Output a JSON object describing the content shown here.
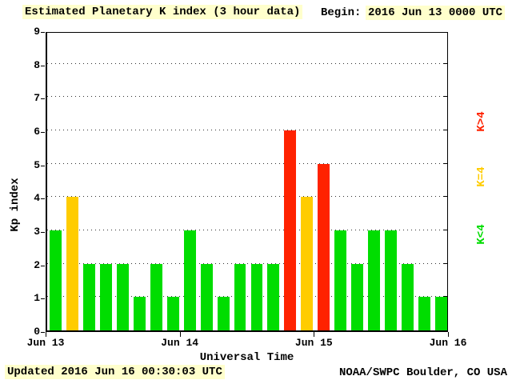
{
  "header": {
    "title": "Estimated Planetary K index (3 hour data)",
    "begin_label": "Begin:",
    "begin_value": "2016 Jun 13 0000 UTC"
  },
  "footer": {
    "updated": "Updated 2016 Jun 16 00:30:03 UTC",
    "source": "NOAA/SWPC Boulder, CO USA"
  },
  "axes": {
    "ylabel": "Kp index",
    "xlabel": "Universal Time"
  },
  "legend": [
    {
      "label": "K>4",
      "color_key": "red"
    },
    {
      "label": "K=4",
      "color_key": "yellow"
    },
    {
      "label": "K<4",
      "color_key": "green"
    }
  ],
  "colors": {
    "red": "#FF2200",
    "yellow": "#FFCC00",
    "green": "#00DD00",
    "highlight": "#FFFFCC",
    "axis": "#000000"
  },
  "chart_data": {
    "type": "bar",
    "title": "Estimated Planetary K index (3 hour data)",
    "xlabel": "Universal Time",
    "ylabel": "Kp index",
    "ylim": [
      0,
      9
    ],
    "yticks": [
      0,
      1,
      2,
      3,
      4,
      5,
      6,
      7,
      8,
      9
    ],
    "x_tick_labels": [
      "Jun 13",
      "Jun 14",
      "Jun 15",
      "Jun 16"
    ],
    "interval_hours": 3,
    "grid": "horizontal-dotted",
    "legend_position": "right",
    "color_rule": {
      "gt4": "red",
      "eq4": "yellow",
      "lt4": "green"
    },
    "series": [
      {
        "name": "Kp",
        "begin": "2016 Jun 13 0000 UTC",
        "values": [
          3,
          4,
          2,
          2,
          2,
          1,
          2,
          1,
          3,
          2,
          1,
          2,
          2,
          2,
          6,
          4,
          5,
          3,
          2,
          3,
          3,
          2,
          1,
          1
        ]
      }
    ]
  }
}
